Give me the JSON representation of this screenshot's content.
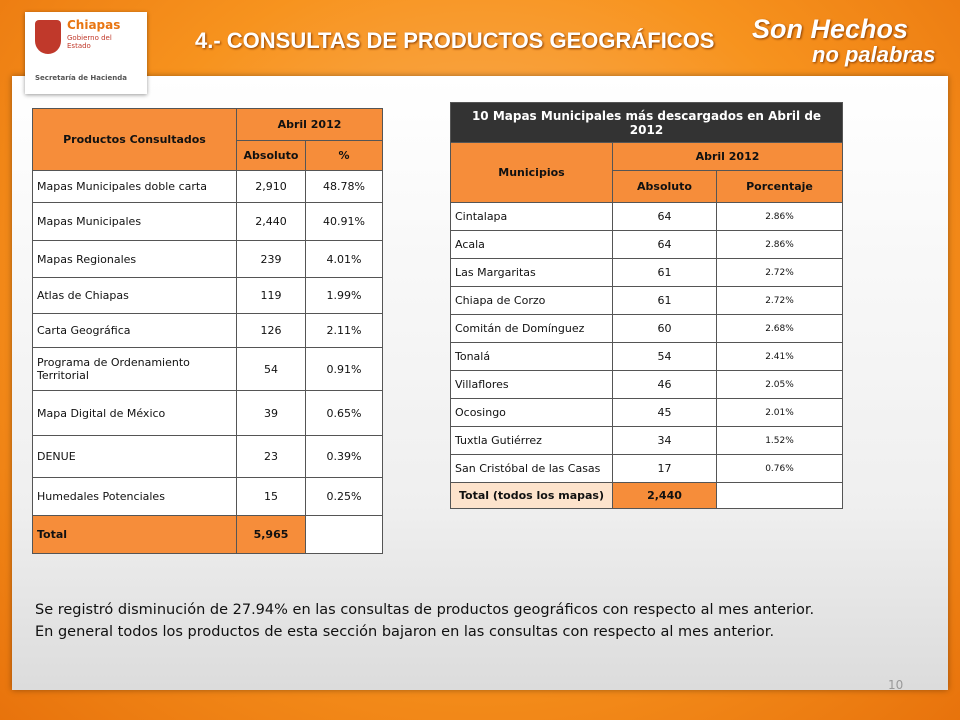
{
  "header": {
    "logo": {
      "name": "Chiapas",
      "subtitle": "Gobierno del Estado",
      "department": "Secretaría de Hacienda"
    },
    "title": "4.- CONSULTAS  DE PRODUCTOS GEOGRÁFICOS",
    "slogan": [
      "Son Hechos",
      "no palabras"
    ]
  },
  "table1": {
    "header": {
      "product": "Productos Consultados",
      "period": "Abril 2012",
      "absolute": "Absoluto",
      "percent": "%"
    },
    "rows": [
      [
        "Mapas Municipales doble carta",
        "2,910",
        "48.78%"
      ],
      [
        "Mapas Municipales",
        "2,440",
        "40.91%"
      ],
      [
        "Mapas Regionales",
        "239",
        "4.01%"
      ],
      [
        "Atlas de Chiapas",
        "119",
        "1.99%"
      ],
      [
        "Carta Geográfica",
        "126",
        "2.11%"
      ],
      [
        "Programa de Ordenamiento Territorial",
        "54",
        "0.91%"
      ],
      [
        "Mapa Digital de México",
        "39",
        "0.65%"
      ],
      [
        "DENUE",
        "23",
        "0.39%"
      ],
      [
        "Humedales Potenciales",
        "15",
        "0.25%"
      ]
    ],
    "total": [
      "Total",
      "5,965"
    ]
  },
  "table2": {
    "title": "10 Mapas Municipales más descargados en Abril de 2012",
    "header": {
      "municipality": "Municipios",
      "period": "Abril 2012",
      "absolute": "Absoluto",
      "percent": "Porcentaje"
    },
    "rows": [
      [
        "Cintalapa",
        "64",
        "2.86%"
      ],
      [
        " Acala",
        "64",
        "2.86%"
      ],
      [
        "Las Margaritas",
        "61",
        "2.72%"
      ],
      [
        "Chiapa de Corzo",
        "61",
        "2.72%"
      ],
      [
        "Comitán de Domínguez",
        "60",
        "2.68%"
      ],
      [
        "Tonalá",
        "54",
        "2.41%"
      ],
      [
        "Villaflores",
        "46",
        "2.05%"
      ],
      [
        "Ocosingo",
        "45",
        "2.01%"
      ],
      [
        "Tuxtla Gutiérrez",
        "34",
        "1.52%"
      ],
      [
        "San Cristóbal de las Casas",
        "17",
        "0.76%"
      ]
    ],
    "total": [
      "Total (todos los mapas)",
      "2,440"
    ]
  },
  "notes": [
    "Se registró disminución de 27.94% en las consultas de productos geográficos con respecto al mes anterior.",
    "En general todos los productos de esta sección bajaron en las consultas con respecto al mes anterior."
  ],
  "page_number": "10"
}
